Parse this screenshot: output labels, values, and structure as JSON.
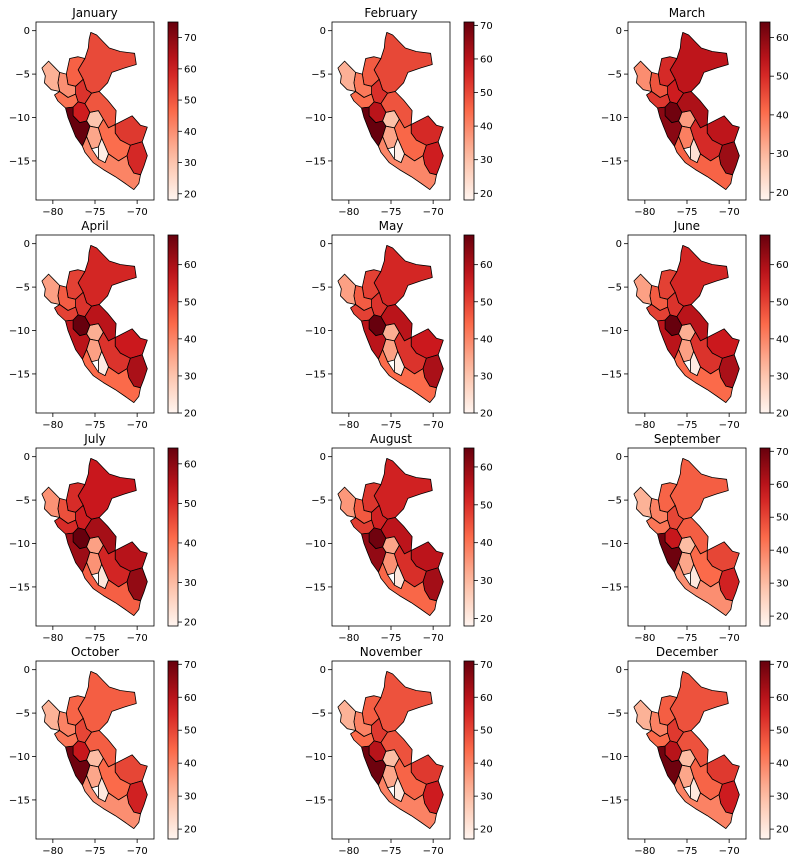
{
  "figure": {
    "type": "choropleth-grid",
    "rows": 4,
    "cols": 3,
    "colormap": [
      "#fff5f0",
      "#fcbba1",
      "#fb6a4a",
      "#cb181d",
      "#67000d"
    ],
    "edge_color": "#000000",
    "panels": [
      {
        "title": "January",
        "vmin": 18,
        "vmax": 75,
        "cbar_ticks": [
          20,
          30,
          40,
          50,
          60,
          70
        ],
        "region_values": [
          52,
          48,
          56,
          40,
          34,
          45,
          60,
          30,
          75,
          50,
          36,
          55,
          46,
          20,
          58,
          42
        ]
      },
      {
        "title": "February",
        "vmin": 18,
        "vmax": 71,
        "cbar_ticks": [
          20,
          30,
          40,
          50,
          60,
          70
        ],
        "region_values": [
          50,
          47,
          54,
          42,
          33,
          44,
          60,
          30,
          71,
          48,
          35,
          55,
          45,
          20,
          57,
          40
        ]
      },
      {
        "title": "March",
        "vmin": 18,
        "vmax": 64,
        "cbar_ticks": [
          20,
          30,
          40,
          50,
          60
        ],
        "region_values": [
          54,
          50,
          52,
          44,
          36,
          48,
          63,
          34,
          60,
          56,
          38,
          54,
          50,
          22,
          58,
          42
        ]
      },
      {
        "title": "April",
        "vmin": 20,
        "vmax": 68,
        "cbar_ticks": [
          20,
          30,
          40,
          50,
          60
        ],
        "region_values": [
          54,
          50,
          52,
          46,
          36,
          50,
          68,
          34,
          58,
          58,
          36,
          56,
          52,
          22,
          60,
          44
        ]
      },
      {
        "title": "May",
        "vmin": 20,
        "vmax": 68,
        "cbar_ticks": [
          20,
          30,
          40,
          50,
          60
        ],
        "region_values": [
          54,
          50,
          52,
          46,
          36,
          50,
          68,
          34,
          58,
          58,
          36,
          56,
          52,
          22,
          60,
          44
        ]
      },
      {
        "title": "June",
        "vmin": 20,
        "vmax": 68,
        "cbar_ticks": [
          20,
          30,
          40,
          50,
          60
        ],
        "region_values": [
          54,
          50,
          52,
          46,
          36,
          50,
          68,
          34,
          58,
          58,
          36,
          56,
          52,
          22,
          60,
          44
        ]
      },
      {
        "title": "July",
        "vmin": 19,
        "vmax": 64,
        "cbar_ticks": [
          20,
          30,
          40,
          50,
          60
        ],
        "region_values": [
          53,
          50,
          52,
          45,
          36,
          50,
          64,
          34,
          58,
          57,
          36,
          55,
          51,
          22,
          59,
          43
        ]
      },
      {
        "title": "August",
        "vmin": 18,
        "vmax": 65,
        "cbar_ticks": [
          20,
          30,
          40,
          50,
          60
        ],
        "region_values": [
          52,
          49,
          52,
          44,
          35,
          48,
          64,
          33,
          60,
          55,
          36,
          55,
          50,
          21,
          58,
          42
        ]
      },
      {
        "title": "September",
        "vmin": 17,
        "vmax": 71,
        "cbar_ticks": [
          20,
          30,
          40,
          50,
          60,
          70
        ],
        "region_values": [
          46,
          45,
          50,
          40,
          32,
          42,
          58,
          30,
          70,
          46,
          34,
          50,
          44,
          20,
          56,
          38
        ]
      },
      {
        "title": "October",
        "vmin": 17,
        "vmax": 71,
        "cbar_ticks": [
          20,
          30,
          40,
          50,
          60,
          70
        ],
        "region_values": [
          46,
          45,
          50,
          40,
          32,
          42,
          58,
          30,
          70,
          46,
          34,
          50,
          44,
          20,
          56,
          38
        ]
      },
      {
        "title": "November",
        "vmin": 17,
        "vmax": 71,
        "cbar_ticks": [
          20,
          30,
          40,
          50,
          60,
          70
        ],
        "region_values": [
          48,
          46,
          52,
          40,
          32,
          44,
          60,
          30,
          70,
          48,
          34,
          52,
          45,
          20,
          57,
          40
        ]
      },
      {
        "title": "December",
        "vmin": 17,
        "vmax": 71,
        "cbar_ticks": [
          20,
          30,
          40,
          50,
          60,
          70
        ],
        "region_values": [
          48,
          46,
          52,
          40,
          32,
          44,
          60,
          30,
          70,
          48,
          34,
          52,
          45,
          20,
          57,
          40
        ]
      }
    ],
    "x_ticks": [
      -80,
      -75,
      -70
    ],
    "y_ticks": [
      0,
      -5,
      -10,
      -15
    ],
    "x_range": [
      -82,
      -68
    ],
    "y_range": [
      -19.5,
      1
    ]
  }
}
